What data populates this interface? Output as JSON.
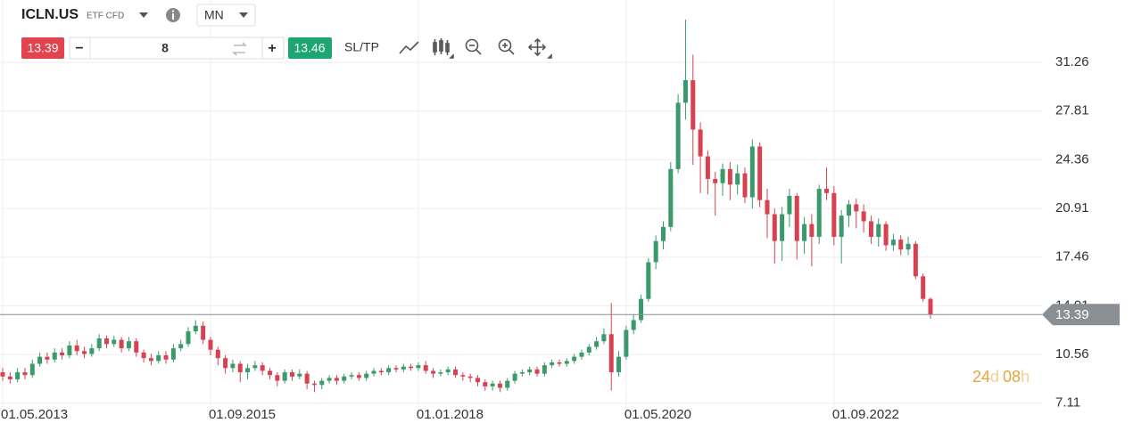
{
  "header": {
    "symbol": "ICLN.US",
    "instrument_type": "ETF CFD",
    "timeframe": "MN"
  },
  "toolbar": {
    "sell_price": "13.39",
    "minus": "−",
    "quantity": "8",
    "plus": "+",
    "buy_price": "13.46",
    "sl_tp": "SL/TP"
  },
  "countdown_parts": [
    "24",
    "d",
    "08",
    "h"
  ],
  "chart_data": {
    "type": "candlestick",
    "x": [
      "01.05.2013",
      "01.06.2013",
      "01.07.2013",
      "01.08.2013",
      "01.09.2013",
      "01.10.2013",
      "01.11.2013",
      "01.12.2013",
      "01.01.2014",
      "01.02.2014",
      "01.03.2014",
      "01.04.2014",
      "01.05.2014",
      "01.06.2014",
      "01.07.2014",
      "01.08.2014",
      "01.09.2014",
      "01.10.2014",
      "01.11.2014",
      "01.12.2014",
      "01.01.2015",
      "01.02.2015",
      "01.03.2015",
      "01.04.2015",
      "01.05.2015",
      "01.06.2015",
      "01.07.2015",
      "01.08.2015",
      "01.09.2015",
      "01.10.2015",
      "01.11.2015",
      "01.12.2015",
      "01.01.2016",
      "01.02.2016",
      "01.03.2016",
      "01.04.2016",
      "01.05.2016",
      "01.06.2016",
      "01.07.2016",
      "01.08.2016",
      "01.09.2016",
      "01.10.2016",
      "01.11.2016",
      "01.12.2016",
      "01.01.2017",
      "01.02.2017",
      "01.03.2017",
      "01.04.2017",
      "01.05.2017",
      "01.06.2017",
      "01.07.2017",
      "01.08.2017",
      "01.09.2017",
      "01.10.2017",
      "01.11.2017",
      "01.12.2017",
      "01.01.2018",
      "01.02.2018",
      "01.03.2018",
      "01.04.2018",
      "01.05.2018",
      "01.06.2018",
      "01.07.2018",
      "01.08.2018",
      "01.09.2018",
      "01.10.2018",
      "01.11.2018",
      "01.12.2018",
      "01.01.2019",
      "01.02.2019",
      "01.03.2019",
      "01.04.2019",
      "01.05.2019",
      "01.06.2019",
      "01.07.2019",
      "01.08.2019",
      "01.09.2019",
      "01.10.2019",
      "01.11.2019",
      "01.12.2019",
      "01.01.2020",
      "01.02.2020",
      "01.03.2020",
      "01.04.2020",
      "01.05.2020",
      "01.06.2020",
      "01.07.2020",
      "01.08.2020",
      "01.09.2020",
      "01.10.2020",
      "01.11.2020",
      "01.12.2020",
      "01.01.2021",
      "01.02.2021",
      "01.03.2021",
      "01.04.2021",
      "01.05.2021",
      "01.06.2021",
      "01.07.2021",
      "01.08.2021",
      "01.09.2021",
      "01.10.2021",
      "01.11.2021",
      "01.12.2021",
      "01.01.2022",
      "01.02.2022",
      "01.03.2022",
      "01.04.2022",
      "01.05.2022",
      "01.06.2022",
      "01.07.2022",
      "01.08.2022",
      "01.09.2022",
      "01.10.2022",
      "01.11.2022",
      "01.12.2022",
      "01.01.2023",
      "01.02.2023",
      "01.03.2023",
      "01.04.2023",
      "01.05.2023",
      "01.06.2023",
      "01.07.2023",
      "01.08.2023",
      "01.09.2023",
      "01.10.2023"
    ],
    "open": [
      9.3,
      9.0,
      8.8,
      9.3,
      9.1,
      9.9,
      10.4,
      10.2,
      10.7,
      10.5,
      11.2,
      10.8,
      10.6,
      11.0,
      11.7,
      11.3,
      11.6,
      11.0,
      11.5,
      10.7,
      10.3,
      10.1,
      10.5,
      10.2,
      11.0,
      11.3,
      12.2,
      12.6,
      11.6,
      10.9,
      10.3,
      9.6,
      9.9,
      9.3,
      9.6,
      9.8,
      9.4,
      9.1,
      8.7,
      9.3,
      9.0,
      9.2,
      8.5,
      8.4,
      8.7,
      8.9,
      8.7,
      9.0,
      9.1,
      8.9,
      9.2,
      9.4,
      9.3,
      9.6,
      9.5,
      9.7,
      9.6,
      9.8,
      9.4,
      9.2,
      9.3,
      9.5,
      9.1,
      9.0,
      8.9,
      8.6,
      8.3,
      8.5,
      8.2,
      8.7,
      9.2,
      9.3,
      9.5,
      9.2,
      9.8,
      10.0,
      9.9,
      10.1,
      10.4,
      10.7,
      11.1,
      11.5,
      12.0,
      9.3,
      10.4,
      12.3,
      13.0,
      14.5,
      17.1,
      18.6,
      19.6,
      23.7,
      28.4,
      30.0,
      26.5,
      24.6,
      23.0,
      22.7,
      23.7,
      22.6,
      23.4,
      21.7,
      25.3,
      21.5,
      20.5,
      18.6,
      20.5,
      21.8,
      18.6,
      19.8,
      18.9,
      22.3,
      22.0,
      18.9,
      20.4,
      21.2,
      20.7,
      20.0,
      18.9,
      19.8,
      18.3,
      18.7,
      18.0,
      18.4,
      16.1,
      14.5
    ],
    "high": [
      9.6,
      9.3,
      9.6,
      9.6,
      10.2,
      10.7,
      10.7,
      11.0,
      11.0,
      11.5,
      11.6,
      11.1,
      11.3,
      12.0,
      11.9,
      11.9,
      11.8,
      11.8,
      11.7,
      10.9,
      10.6,
      10.8,
      10.8,
      11.3,
      11.6,
      12.5,
      13.0,
      12.9,
      11.8,
      11.1,
      10.5,
      10.2,
      10.1,
      9.9,
      10.1,
      10.0,
      9.6,
      9.3,
      9.5,
      9.5,
      9.5,
      9.4,
      8.7,
      8.9,
      9.1,
      9.1,
      9.2,
      9.3,
      9.3,
      9.4,
      9.6,
      9.6,
      9.8,
      9.8,
      9.9,
      9.9,
      10.0,
      10.1,
      9.6,
      9.5,
      9.7,
      9.7,
      9.3,
      9.2,
      9.1,
      8.8,
      8.7,
      8.7,
      8.9,
      9.4,
      9.5,
      9.7,
      9.7,
      10.0,
      10.2,
      10.2,
      10.3,
      10.6,
      10.9,
      11.3,
      11.8,
      12.4,
      14.2,
      10.8,
      12.6,
      13.4,
      14.8,
      17.4,
      19.0,
      20.0,
      24.2,
      29.0,
      34.3,
      31.8,
      27.0,
      25.0,
      23.5,
      24.1,
      24.2,
      24.0,
      23.8,
      25.8,
      25.6,
      22.3,
      20.9,
      21.0,
      22.3,
      22.0,
      20.3,
      20.5,
      22.6,
      23.8,
      22.5,
      20.8,
      21.5,
      21.6,
      21.2,
      20.4,
      20.2,
      20.0,
      19.1,
      19.0,
      18.9,
      18.6,
      16.3,
      14.6
    ],
    "low": [
      8.7,
      8.5,
      8.6,
      8.8,
      8.9,
      9.7,
      9.9,
      10.0,
      10.2,
      10.3,
      10.5,
      10.3,
      10.4,
      10.8,
      11.0,
      11.1,
      10.7,
      10.8,
      10.4,
      10.0,
      9.8,
      9.9,
      9.9,
      10.0,
      10.8,
      11.1,
      12.0,
      11.3,
      10.5,
      9.8,
      9.2,
      9.3,
      8.6,
      8.8,
      9.4,
      9.1,
      8.8,
      8.3,
      8.5,
      8.7,
      8.8,
      8.1,
      7.9,
      8.1,
      8.5,
      8.4,
      8.5,
      8.8,
      8.7,
      8.7,
      9.0,
      9.1,
      9.1,
      9.3,
      9.3,
      9.4,
      9.4,
      9.2,
      8.9,
      9.0,
      9.1,
      8.9,
      8.7,
      8.6,
      8.3,
      8.0,
      8.0,
      7.9,
      8.0,
      8.5,
      9.0,
      9.1,
      9.0,
      9.0,
      9.6,
      9.7,
      9.7,
      9.9,
      10.2,
      10.5,
      10.9,
      11.3,
      8.0,
      9.0,
      10.2,
      12.0,
      12.8,
      14.3,
      16.6,
      18.0,
      19.3,
      23.4,
      27.2,
      24.0,
      22.0,
      21.9,
      20.4,
      21.8,
      21.5,
      21.9,
      21.3,
      20.9,
      21.0,
      18.8,
      17.0,
      17.2,
      19.6,
      17.3,
      17.7,
      16.8,
      18.4,
      21.5,
      18.3,
      17.0,
      19.6,
      19.5,
      19.2,
      18.4,
      18.2,
      17.9,
      17.9,
      17.6,
      17.6,
      15.9,
      14.3,
      13.1
    ],
    "close": [
      9.0,
      8.8,
      9.3,
      9.1,
      9.9,
      10.4,
      10.2,
      10.7,
      10.5,
      11.2,
      10.8,
      10.6,
      11.0,
      11.7,
      11.3,
      11.6,
      11.0,
      11.5,
      10.7,
      10.3,
      10.1,
      10.5,
      10.2,
      11.0,
      11.3,
      12.2,
      12.6,
      11.6,
      10.9,
      10.3,
      9.6,
      9.9,
      9.3,
      9.6,
      9.8,
      9.4,
      9.1,
      8.7,
      9.3,
      9.0,
      9.2,
      8.5,
      8.4,
      8.7,
      8.9,
      8.7,
      9.0,
      9.1,
      8.9,
      9.2,
      9.4,
      9.3,
      9.6,
      9.5,
      9.7,
      9.6,
      9.8,
      9.4,
      9.2,
      9.3,
      9.5,
      9.1,
      9.0,
      8.9,
      8.6,
      8.3,
      8.5,
      8.2,
      8.7,
      9.2,
      9.3,
      9.5,
      9.2,
      9.8,
      10.0,
      9.9,
      10.1,
      10.4,
      10.7,
      11.1,
      11.5,
      12.0,
      9.3,
      10.4,
      12.3,
      13.0,
      14.5,
      17.1,
      18.6,
      19.6,
      23.7,
      28.4,
      30.0,
      26.5,
      24.6,
      23.0,
      22.7,
      23.7,
      22.6,
      23.4,
      21.7,
      25.3,
      21.5,
      20.5,
      18.6,
      20.5,
      21.8,
      18.6,
      19.8,
      18.9,
      22.3,
      22.0,
      18.9,
      20.4,
      21.2,
      20.7,
      20.0,
      18.9,
      19.8,
      18.3,
      18.7,
      18.0,
      18.4,
      16.1,
      14.5,
      13.39
    ],
    "up_color": "#3a9a6a",
    "down_color": "#d8414f",
    "xticks": [
      "01.05.2013",
      "01.09.2015",
      "01.01.2018",
      "01.05.2020",
      "01.09.2022"
    ],
    "ylim": [
      6.78,
      35.68
    ],
    "yticks": [
      7.11,
      10.56,
      14.01,
      17.46,
      20.91,
      24.36,
      27.81,
      31.26
    ],
    "grid": true
  }
}
